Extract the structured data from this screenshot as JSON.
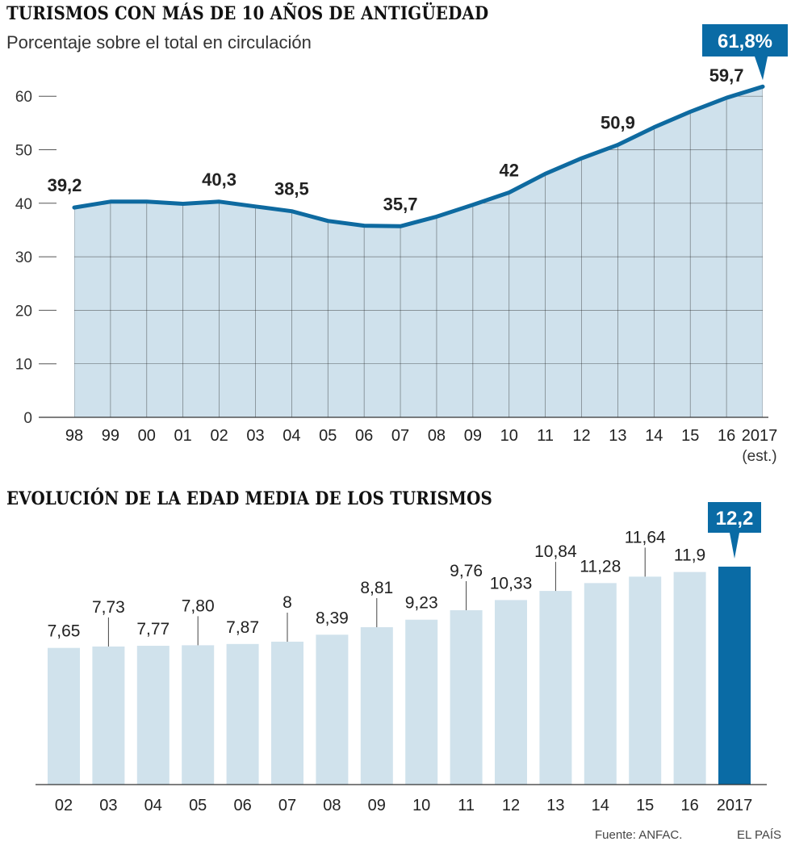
{
  "chart_data": [
    {
      "type": "area",
      "title": "TURISMOS CON MÁS DE 10 AÑOS DE ANTIGÜEDAD",
      "subtitle": "Porcentaje sobre el total en circulación",
      "xlabel": "",
      "ylabel": "",
      "categories": [
        "98",
        "99",
        "00",
        "01",
        "02",
        "03",
        "04",
        "05",
        "06",
        "07",
        "08",
        "09",
        "10",
        "11",
        "12",
        "13",
        "14",
        "15",
        "16",
        "2017"
      ],
      "category_note": "(est.)",
      "values": [
        39.2,
        40.3,
        40.3,
        39.9,
        40.3,
        39.4,
        38.5,
        36.7,
        35.8,
        35.7,
        37.5,
        39.7,
        42.0,
        45.5,
        48.4,
        50.9,
        54.2,
        57.1,
        59.7,
        61.8
      ],
      "labels": [
        {
          "index": 0,
          "text": "39,2"
        },
        {
          "index": 4,
          "text": "40,3"
        },
        {
          "index": 6,
          "text": "38,5"
        },
        {
          "index": 9,
          "text": "35,7"
        },
        {
          "index": 12,
          "text": "42"
        },
        {
          "index": 15,
          "text": "50,9"
        },
        {
          "index": 18,
          "text": "59,7"
        }
      ],
      "highlight": {
        "index": 19,
        "text": "61,8%"
      },
      "yticks": [
        0,
        10,
        20,
        30,
        40,
        50,
        60
      ],
      "ylim": [
        0,
        62
      ],
      "grid": true,
      "colors": {
        "line": "#0e6aa0",
        "fill": "#cfe1ec",
        "highlight": "#0a6ba5"
      }
    },
    {
      "type": "bar",
      "title": "EVOLUCIÓN DE LA EDAD MEDIA DE LOS TURISMOS",
      "xlabel": "",
      "ylabel": "",
      "categories": [
        "02",
        "03",
        "04",
        "05",
        "06",
        "07",
        "08",
        "09",
        "10",
        "11",
        "12",
        "13",
        "14",
        "15",
        "16",
        "2017"
      ],
      "values": [
        7.65,
        7.73,
        7.77,
        7.8,
        7.87,
        8.0,
        8.39,
        8.81,
        9.23,
        9.76,
        10.33,
        10.84,
        11.28,
        11.64,
        11.9,
        12.2
      ],
      "value_labels": [
        "7,65",
        "7,73",
        "7,77",
        "7,80",
        "7,87",
        "8",
        "8,39",
        "8,81",
        "9,23",
        "9,76",
        "10,33",
        "10,84",
        "11,28",
        "11,64",
        "11,9",
        "12,2"
      ],
      "highlight": {
        "index": 15,
        "text": "12,2"
      },
      "ylim": [
        0,
        12.2
      ],
      "grid": false,
      "colors": {
        "bar": "#d0e2ec",
        "highlight": "#0a6ba5"
      }
    }
  ],
  "footer": {
    "source": "Fuente: ANFAC.",
    "brand": "EL PAÍS"
  }
}
